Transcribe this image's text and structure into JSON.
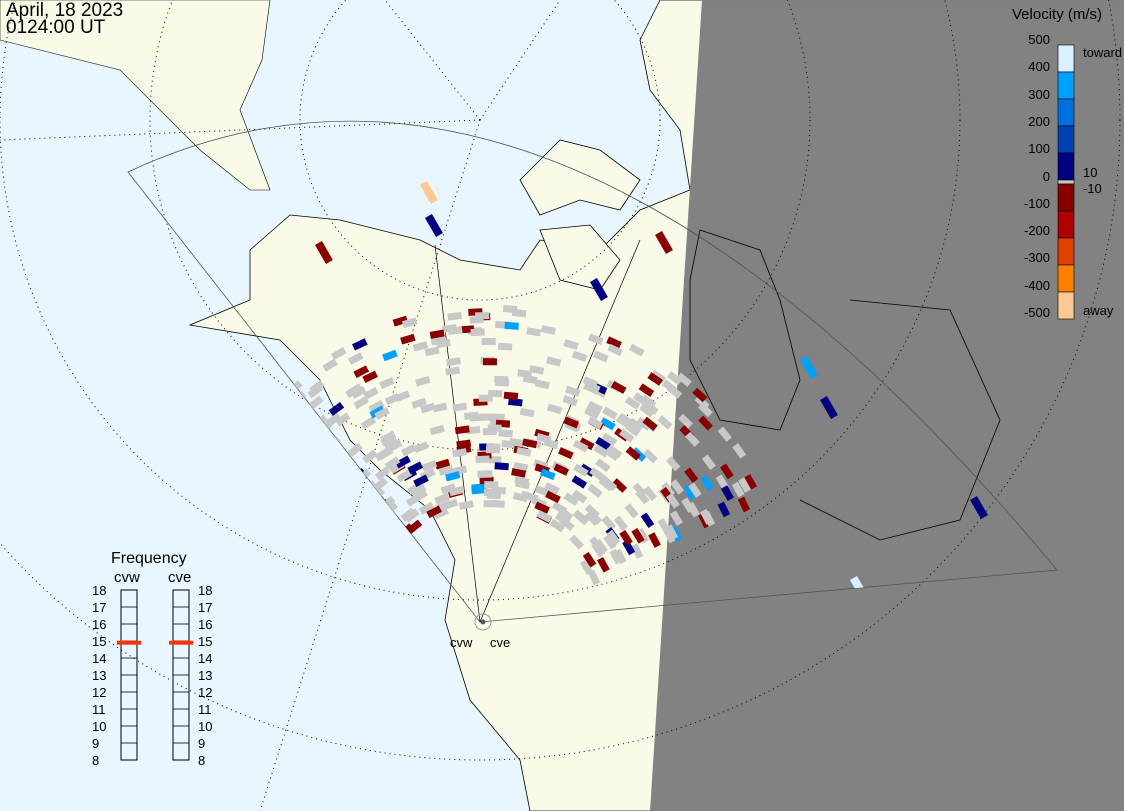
{
  "header": {
    "date": "April, 18 2023",
    "time": "0124:00 UT"
  },
  "colors": {
    "ocean": "#e8f6ff",
    "land": "#fafae8",
    "night": "#7f7f7f",
    "ground_scatter": "#c8c8c8",
    "frequency_marker": "#ff3300"
  },
  "velocity_scale": {
    "title": "Velocity (m/s)",
    "ticks": [
      "500",
      "400",
      "300",
      "200",
      "100",
      "0",
      "-100",
      "-200",
      "-300",
      "-400",
      "-500"
    ],
    "toward_label": "toward",
    "away_label": "away",
    "threshold_pos": "10",
    "threshold_neg": "-10",
    "colors": [
      "#d8f0ff",
      "#00a0ff",
      "#0070e0",
      "#0040b0",
      "#000080",
      "#c8c8c8",
      "#880000",
      "#b00000",
      "#e04000",
      "#ff8000",
      "#ffc890"
    ]
  },
  "frequency": {
    "title": "Frequency",
    "radars": [
      {
        "name": "cvw",
        "value_mhz": 14.9
      },
      {
        "name": "cve",
        "value_mhz": 14.9
      }
    ],
    "ticks": [
      "18",
      "17",
      "16",
      "15",
      "14",
      "13",
      "12",
      "11",
      "10",
      "9",
      "8"
    ],
    "range": [
      8,
      18
    ]
  },
  "radar_sites": {
    "west": "cvw",
    "east": "cve"
  }
}
